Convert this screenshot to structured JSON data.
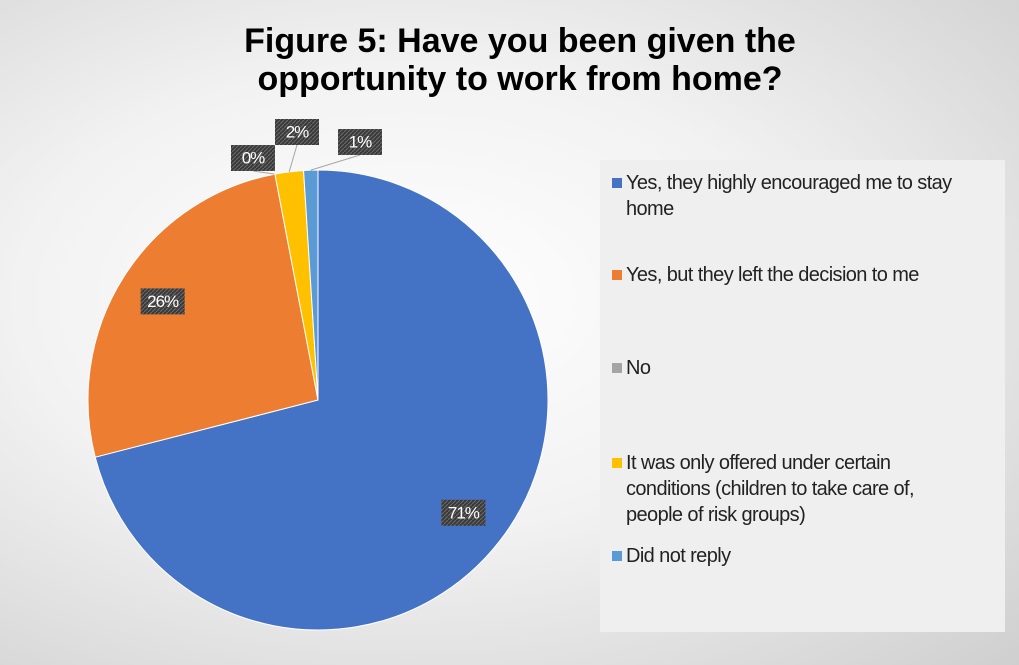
{
  "chart_data": {
    "type": "pie",
    "title": "Figure 5: Have you been given the opportunity to work from home?",
    "categories": [
      "Yes, they highly encouraged me to stay home",
      "Yes, but they left the decision to me",
      "No",
      "It was only offered under certain conditions (children to take care of, people of risk groups)",
      "Did not reply"
    ],
    "values": [
      71,
      26,
      0,
      2,
      1
    ],
    "value_labels": [
      "71%",
      "26%",
      "0%",
      "2%",
      "1%"
    ],
    "colors": [
      "#4472c4",
      "#ed7d31",
      "#a5a5a5",
      "#ffc000",
      "#5b9bd5"
    ],
    "legend": "right"
  }
}
